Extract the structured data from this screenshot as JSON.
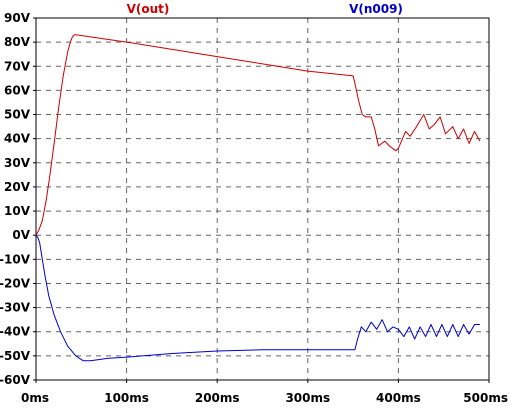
{
  "chart_data": {
    "type": "line",
    "x_unit": "ms",
    "xlim": [
      0,
      500
    ],
    "ylim": [
      -60,
      90
    ],
    "x_ticks": [
      0,
      100,
      200,
      300,
      400,
      500
    ],
    "x_tick_labels": [
      "0ms",
      "100ms",
      "200ms",
      "300ms",
      "400ms",
      "500ms"
    ],
    "y_ticks": [
      90,
      80,
      70,
      60,
      50,
      40,
      30,
      20,
      10,
      0,
      -10,
      -20,
      -30,
      -40,
      -50,
      -60
    ],
    "y_tick_labels": [
      "90V",
      "80V",
      "70V",
      "60V",
      "50V",
      "40V",
      "30V",
      "20V",
      "10V",
      "0V",
      "-10V",
      "-20V",
      "-30V",
      "-40V",
      "-50V",
      "-60V"
    ],
    "grid": true,
    "legend": "top",
    "series": [
      {
        "name": "V(out)",
        "color": "#cc0000",
        "points": [
          [
            0,
            0
          ],
          [
            3,
            2
          ],
          [
            7,
            6
          ],
          [
            11,
            14
          ],
          [
            15,
            24
          ],
          [
            20,
            38
          ],
          [
            25,
            53
          ],
          [
            30,
            66
          ],
          [
            35,
            76
          ],
          [
            38,
            80
          ],
          [
            40,
            82
          ],
          [
            42,
            83
          ],
          [
            45,
            83
          ],
          [
            100,
            80
          ],
          [
            200,
            74
          ],
          [
            300,
            68
          ],
          [
            350,
            66
          ],
          [
            352,
            63
          ],
          [
            356,
            56
          ],
          [
            360,
            50
          ],
          [
            364,
            49
          ],
          [
            370,
            49
          ],
          [
            374,
            44
          ],
          [
            378,
            37
          ],
          [
            385,
            39
          ],
          [
            390,
            37
          ],
          [
            397,
            35
          ],
          [
            400,
            36
          ],
          [
            408,
            43
          ],
          [
            413,
            41
          ],
          [
            420,
            45
          ],
          [
            428,
            50
          ],
          [
            434,
            44
          ],
          [
            440,
            46
          ],
          [
            446,
            49
          ],
          [
            452,
            42
          ],
          [
            460,
            45
          ],
          [
            466,
            40
          ],
          [
            472,
            44
          ],
          [
            478,
            38
          ],
          [
            484,
            43
          ],
          [
            490,
            39
          ]
        ]
      },
      {
        "name": "V(n009)",
        "color": "#0000cc",
        "points": [
          [
            0,
            0
          ],
          [
            2,
            -1
          ],
          [
            4,
            -3
          ],
          [
            7,
            -10
          ],
          [
            10,
            -17
          ],
          [
            14,
            -25
          ],
          [
            20,
            -33
          ],
          [
            27,
            -40
          ],
          [
            35,
            -46
          ],
          [
            44,
            -50
          ],
          [
            52,
            -52
          ],
          [
            60,
            -52
          ],
          [
            80,
            -51
          ],
          [
            100,
            -50.5
          ],
          [
            150,
            -49
          ],
          [
            200,
            -48
          ],
          [
            250,
            -47.5
          ],
          [
            300,
            -47.5
          ],
          [
            352,
            -47.5
          ],
          [
            355,
            -43
          ],
          [
            359,
            -38
          ],
          [
            364,
            -40
          ],
          [
            370,
            -36
          ],
          [
            376,
            -39
          ],
          [
            382,
            -35
          ],
          [
            388,
            -40
          ],
          [
            394,
            -38
          ],
          [
            400,
            -39
          ],
          [
            406,
            -42
          ],
          [
            412,
            -38
          ],
          [
            418,
            -43
          ],
          [
            424,
            -38
          ],
          [
            430,
            -42
          ],
          [
            436,
            -37
          ],
          [
            442,
            -42
          ],
          [
            448,
            -37
          ],
          [
            454,
            -42
          ],
          [
            460,
            -37
          ],
          [
            466,
            -42
          ],
          [
            472,
            -37
          ],
          [
            478,
            -41
          ],
          [
            484,
            -37
          ],
          [
            490,
            -37
          ]
        ]
      }
    ]
  }
}
